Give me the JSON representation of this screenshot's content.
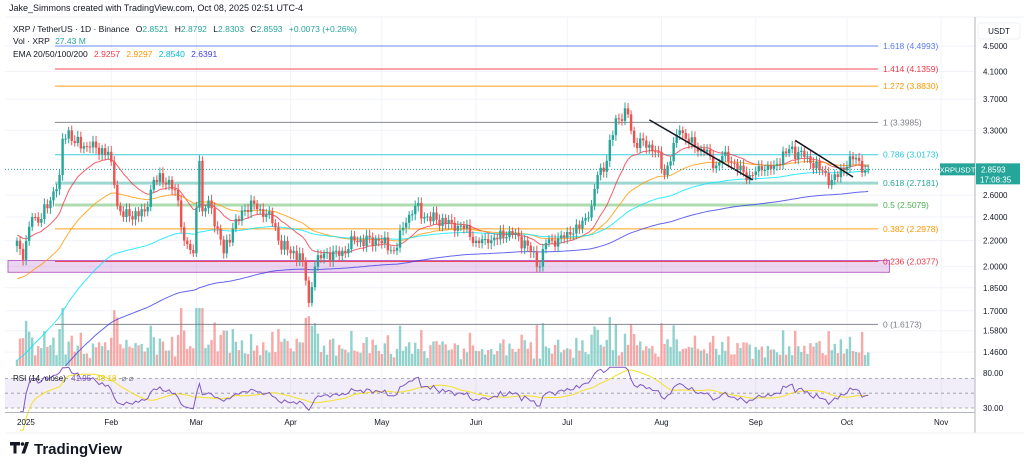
{
  "credit": "Jake_Simmons created with TradingView.com, Oct 08, 2025 02:51 UTC-4",
  "legend": {
    "symbol": "XRP / TetherUS · 1D · Binance",
    "o_label": "O",
    "o": "2.8521",
    "h_label": "H",
    "h": "2.8792",
    "l_label": "L",
    "l": "2.8303",
    "c_label": "C",
    "c": "2.8593",
    "change": "+0.0073 (+0.26%)",
    "vol_label": "Vol · XRP",
    "vol": "27.43 M",
    "ema_label": "EMA 20/50/100/200",
    "ema20": "2.9257",
    "ema50": "2.9297",
    "ema100": "2.8540",
    "ema200": "2.6391",
    "rsi_label": "RSI (14, close)",
    "rsi": "41.95",
    "rsi_ma": "48.18"
  },
  "colors": {
    "up": "#26a69a",
    "down": "#ef5350",
    "ema20": "#f23645",
    "ema50": "#ff9800",
    "ema100": "#00e5ff",
    "ema200": "#3f3fe6",
    "rsi": "#7e57c2",
    "rsi_ma": "#f5e02a"
  },
  "price_axis": {
    "unit": "USDT",
    "ticks": [
      "4.5000",
      "4.1000",
      "3.7000",
      "3.3000",
      "2.6000",
      "2.4000",
      "2.2000",
      "2.0000",
      "1.8500",
      "1.7000",
      "1.5800",
      "1.4600"
    ],
    "last_symbol": "XRPUSDT",
    "last_price": "2.8593",
    "countdown": "17:08:35"
  },
  "rsi_axis": {
    "ticks": [
      "80.00",
      "30.00"
    ]
  },
  "time_axis": {
    "labels": [
      "2025",
      "Feb",
      "Mar",
      "Apr",
      "May",
      "Jun",
      "Jul",
      "Aug",
      "Sep",
      "Oct",
      "Nov"
    ]
  },
  "fib": [
    {
      "label": "1.618 (4.4993)",
      "level": 4.4993,
      "color": "#5b7cf0"
    },
    {
      "label": "1.414 (4.1359)",
      "level": 4.1359,
      "color": "#f23645"
    },
    {
      "label": "1.272 (3.8830)",
      "level": 3.883,
      "color": "#ff9800"
    },
    {
      "label": "1 (3.3985)",
      "level": 3.3985,
      "color": "#787b86"
    },
    {
      "label": "0.786 (3.0173)",
      "level": 3.0173,
      "color": "#26c6da"
    },
    {
      "label": "0.618 (2.7181)",
      "level": 2.7181,
      "color": "#26a69a"
    },
    {
      "label": "0.5 (2.5079)",
      "level": 2.5079,
      "color": "#4caf50"
    },
    {
      "label": "0.382 (2.2978)",
      "level": 2.2978,
      "color": "#ff9800"
    },
    {
      "label": "0.236 (2.0377)",
      "level": 2.0377,
      "color": "#f23645"
    },
    {
      "label": "0 (1.6173)",
      "level": 1.6173,
      "color": "#787b86"
    }
  ],
  "chart_data": {
    "type": "candlestick",
    "title": "XRP / TetherUS · 1D · Binance",
    "y_scale": "log",
    "ylim": [
      1.4,
      4.75
    ],
    "grid": true,
    "close_anchors": [
      [
        "2025-01-01",
        2.2
      ],
      [
        "2025-01-03",
        2.05
      ],
      [
        "2025-01-06",
        2.4
      ],
      [
        "2025-01-08",
        2.35
      ],
      [
        "2025-01-12",
        2.55
      ],
      [
        "2025-01-15",
        2.8
      ],
      [
        "2025-01-16",
        3.2
      ],
      [
        "2025-01-18",
        3.3
      ],
      [
        "2025-01-20",
        3.15
      ],
      [
        "2025-01-25",
        3.1
      ],
      [
        "2025-01-31",
        3.05
      ],
      [
        "2025-02-02",
        2.7
      ],
      [
        "2025-02-03",
        2.5
      ],
      [
        "2025-02-05",
        2.4
      ],
      [
        "2025-02-12",
        2.45
      ],
      [
        "2025-02-15",
        2.75
      ],
      [
        "2025-02-20",
        2.75
      ],
      [
        "2025-02-23",
        2.55
      ],
      [
        "2025-02-25",
        2.2
      ],
      [
        "2025-02-28",
        2.1
      ],
      [
        "2025-03-02",
        2.95
      ],
      [
        "2025-03-03",
        2.45
      ],
      [
        "2025-03-05",
        2.55
      ],
      [
        "2025-03-08",
        2.3
      ],
      [
        "2025-03-10",
        2.1
      ],
      [
        "2025-03-13",
        2.3
      ],
      [
        "2025-03-19",
        2.55
      ],
      [
        "2025-03-23",
        2.4
      ],
      [
        "2025-03-25",
        2.45
      ],
      [
        "2025-03-28",
        2.2
      ],
      [
        "2025-04-01",
        2.1
      ],
      [
        "2025-04-04",
        2.1
      ],
      [
        "2025-04-06",
        1.9
      ],
      [
        "2025-04-07",
        1.75
      ],
      [
        "2025-04-09",
        2.0
      ],
      [
        "2025-04-12",
        2.1
      ],
      [
        "2025-04-17",
        2.08
      ],
      [
        "2025-04-22",
        2.2
      ],
      [
        "2025-04-30",
        2.2
      ],
      [
        "2025-05-05",
        2.12
      ],
      [
        "2025-05-09",
        2.35
      ],
      [
        "2025-05-12",
        2.5
      ],
      [
        "2025-05-15",
        2.4
      ],
      [
        "2025-05-24",
        2.35
      ],
      [
        "2025-05-28",
        2.3
      ],
      [
        "2025-06-01",
        2.2
      ],
      [
        "2025-06-05",
        2.18
      ],
      [
        "2025-06-12",
        2.28
      ],
      [
        "2025-06-18",
        2.16
      ],
      [
        "2025-06-22",
        2.0
      ],
      [
        "2025-06-24",
        2.18
      ],
      [
        "2025-06-28",
        2.22
      ],
      [
        "2025-07-02",
        2.25
      ],
      [
        "2025-07-05",
        2.3
      ],
      [
        "2025-07-09",
        2.5
      ],
      [
        "2025-07-11",
        2.8
      ],
      [
        "2025-07-14",
        2.95
      ],
      [
        "2025-07-17",
        3.45
      ],
      [
        "2025-07-21",
        3.5
      ],
      [
        "2025-07-23",
        3.15
      ],
      [
        "2025-07-26",
        3.18
      ],
      [
        "2025-07-30",
        3.05
      ],
      [
        "2025-08-02",
        2.8
      ],
      [
        "2025-08-03",
        2.9
      ],
      [
        "2025-08-07",
        3.3
      ],
      [
        "2025-08-09",
        3.2
      ],
      [
        "2025-08-12",
        3.1
      ],
      [
        "2025-08-15",
        3.05
      ],
      [
        "2025-08-19",
        2.9
      ],
      [
        "2025-08-22",
        3.05
      ],
      [
        "2025-08-26",
        2.85
      ],
      [
        "2025-08-30",
        2.8
      ],
      [
        "2025-09-03",
        2.85
      ],
      [
        "2025-09-07",
        2.9
      ],
      [
        "2025-09-12",
        3.08
      ],
      [
        "2025-09-18",
        3.0
      ],
      [
        "2025-09-22",
        2.85
      ],
      [
        "2025-09-26",
        2.75
      ],
      [
        "2025-09-30",
        2.85
      ],
      [
        "2025-10-02",
        3.0
      ],
      [
        "2025-10-05",
        2.95
      ],
      [
        "2025-10-07",
        2.85
      ],
      [
        "2025-10-08",
        2.8593
      ]
    ],
    "trendlines": [
      [
        [
          "2025-07-28",
          3.43
        ],
        [
          "2025-08-31",
          2.75
        ]
      ],
      [
        [
          "2025-09-14",
          3.18
        ],
        [
          "2025-10-03",
          2.78
        ]
      ]
    ],
    "zone": {
      "from": "2024-12-29",
      "to": "2025-10-15",
      "top": 2.0377,
      "bottom": 1.98
    }
  }
}
